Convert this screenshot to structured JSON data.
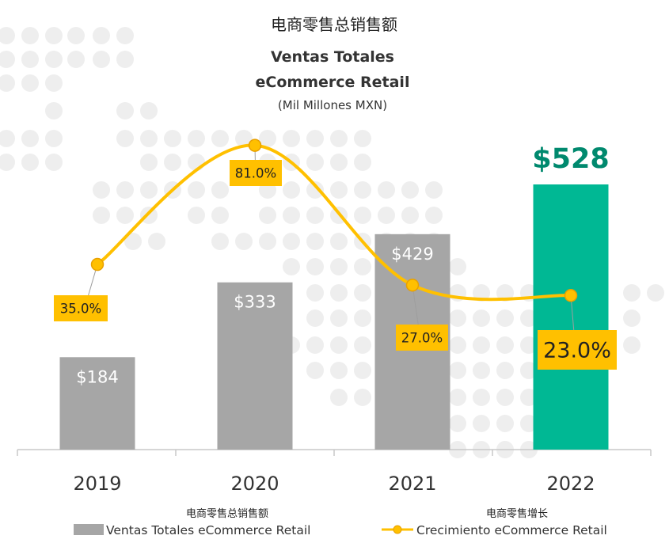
{
  "chart_data": {
    "type": "bar",
    "title_cn": "电商零售总销售额",
    "title_line1": "Ventas Totales",
    "title_line2": "eCommerce Retail",
    "subtitle": "(Mil Millones MXN)",
    "categories": [
      "2019",
      "2020",
      "2021",
      "2022"
    ],
    "series": [
      {
        "name": "Ventas Totales eCommerce Retail",
        "name_cn": "电商零售总销售额",
        "type": "bar",
        "values": [
          184,
          333,
          429,
          528
        ],
        "labels": [
          "$184",
          "$333",
          "$429",
          "$528"
        ],
        "colors": [
          "#a6a6a6",
          "#a6a6a6",
          "#a6a6a6",
          "#00b894"
        ]
      },
      {
        "name": "Crecimiento eCommerce Retail",
        "name_cn": "电商零售增长",
        "type": "line",
        "values": [
          35.0,
          81.0,
          27.0,
          23.0
        ],
        "labels": [
          "35.0%",
          "81.0%",
          "27.0%",
          "23.0%"
        ],
        "color": "#ffc000"
      }
    ],
    "ylim_bar": [
      0,
      600
    ],
    "ylim_line": [
      0,
      100
    ],
    "grid": false,
    "legend_position": "bottom"
  },
  "colors": {
    "bar": "#a6a6a6",
    "highlight_bar": "#00b894",
    "highlight_text": "#00896e",
    "line": "#ffc000",
    "dots": "#eeeeee"
  }
}
